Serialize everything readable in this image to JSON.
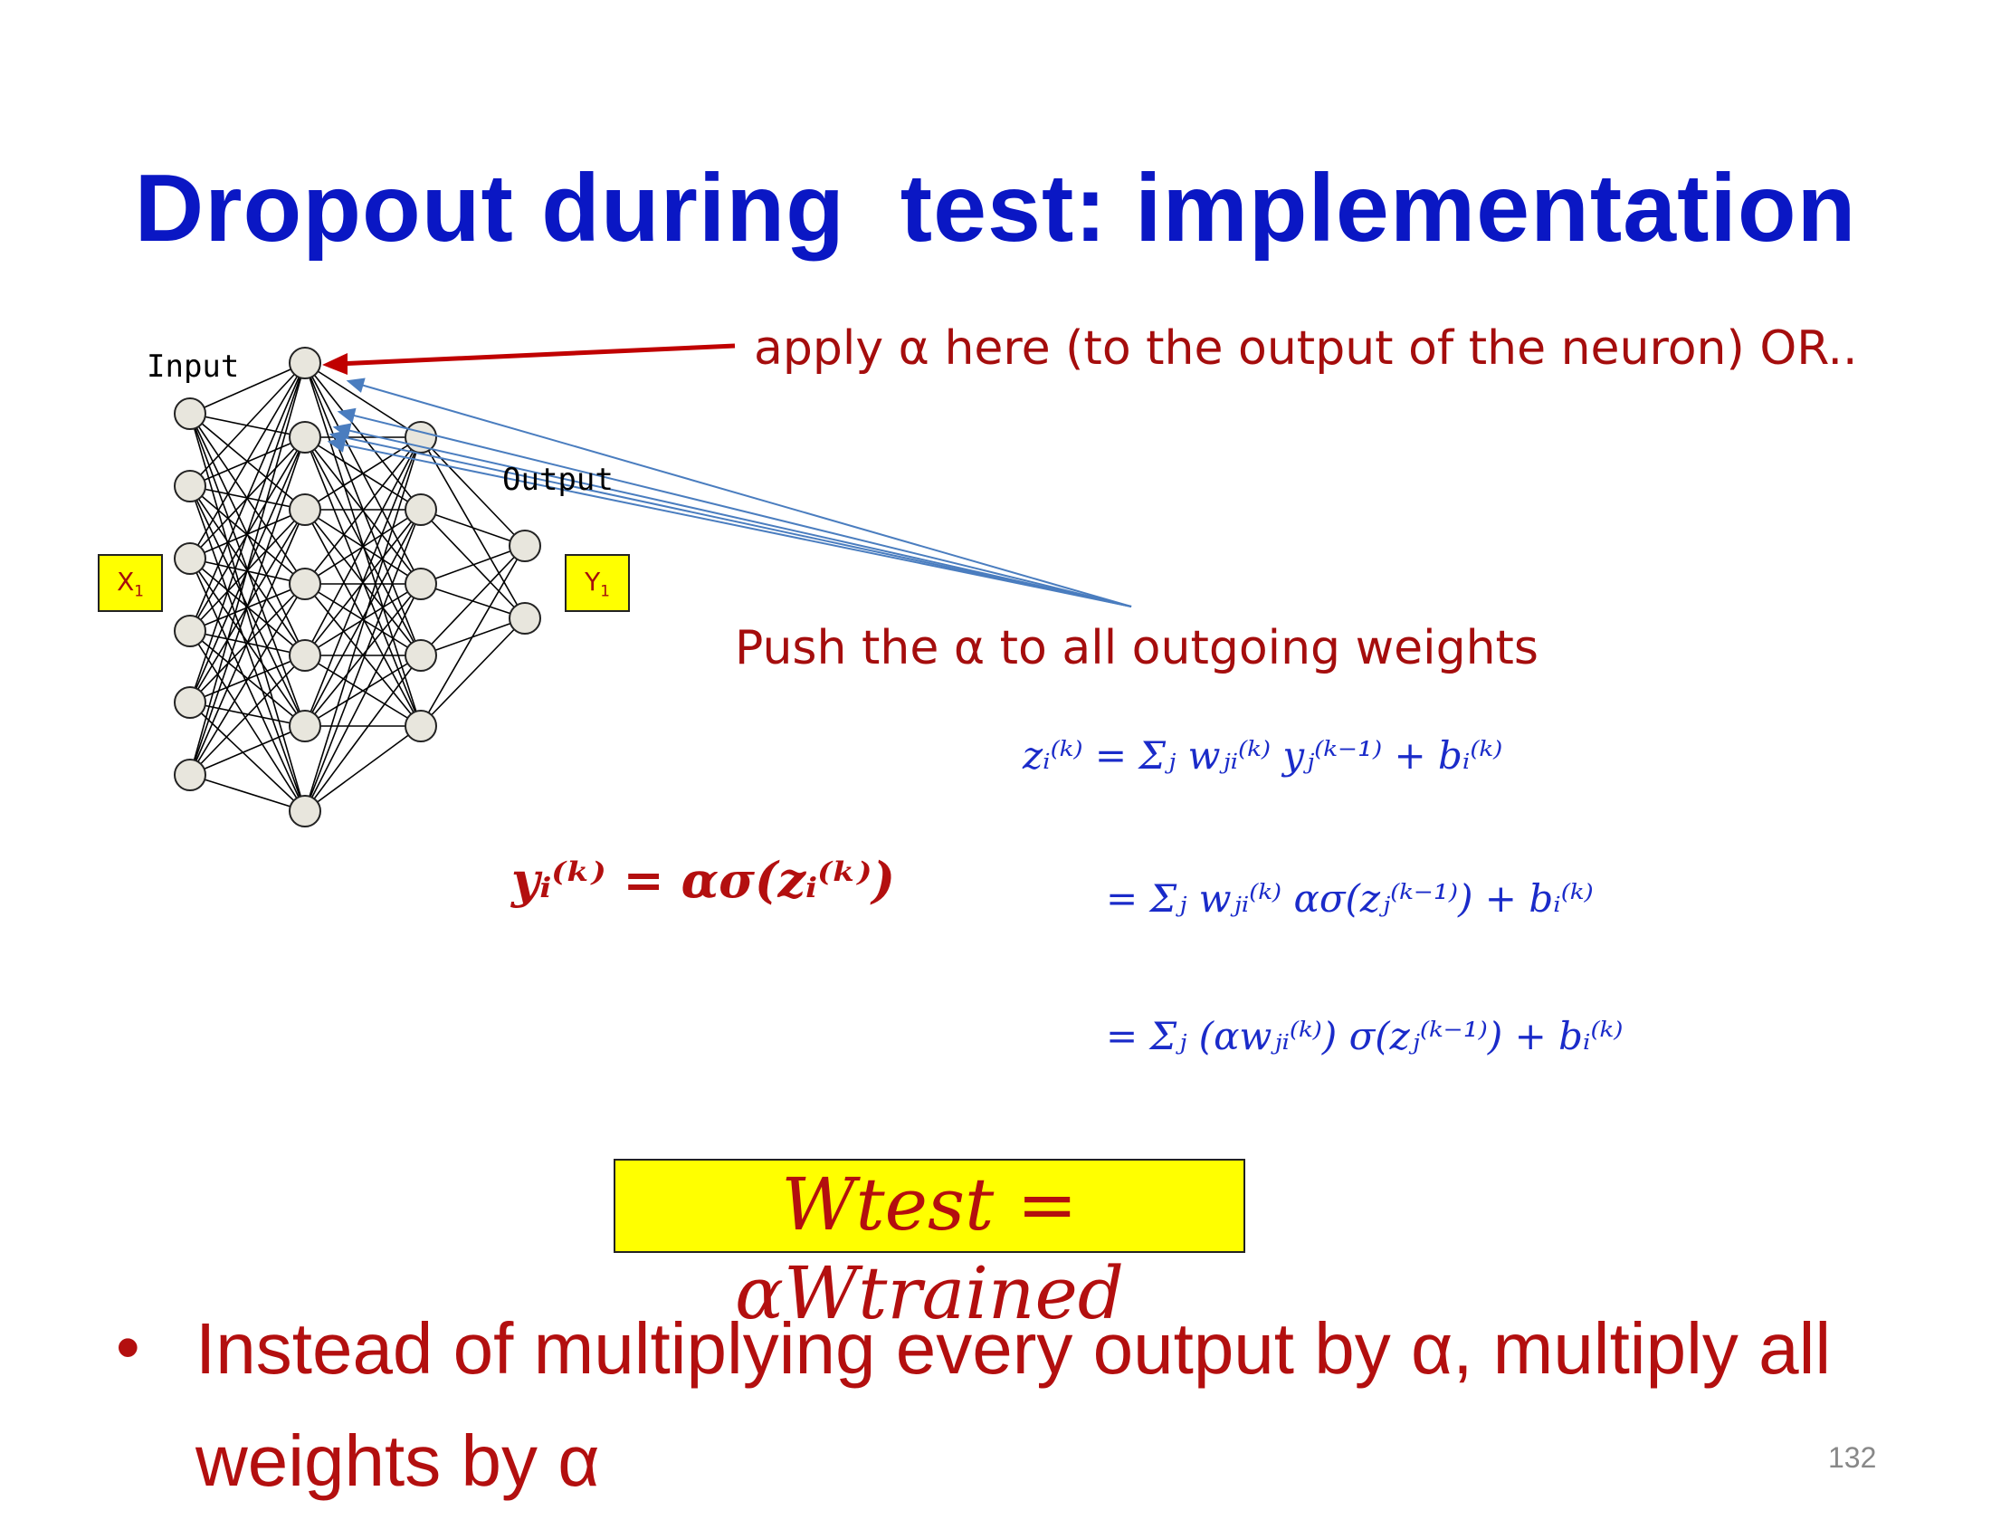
{
  "slide": {
    "title": "Dropout during  test: implementation",
    "page_number": "132"
  },
  "network": {
    "input_label": "Input",
    "output_label": "Output",
    "x_box": "X",
    "x_sub": "1",
    "y_box": "Y",
    "y_sub": "1"
  },
  "annotations": {
    "apply_note": "apply α here (to the output of the neuron) OR..",
    "push_note": "Push the α to all outgoing weights"
  },
  "equations": {
    "y_eq": "yᵢ⁽ᵏ⁾ = ασ(zᵢ⁽ᵏ⁾)",
    "z_line1": "zᵢ⁽ᵏ⁾ = Σⱼ wⱼᵢ⁽ᵏ⁾ yⱼ⁽ᵏ⁻¹⁾ + bᵢ⁽ᵏ⁾",
    "z_line2": "= Σⱼ wⱼᵢ⁽ᵏ⁾ ασ(zⱼ⁽ᵏ⁻¹⁾) + bᵢ⁽ᵏ⁾",
    "z_line3": "= Σⱼ (αwⱼᵢ⁽ᵏ⁾) σ(zⱼ⁽ᵏ⁻¹⁾) + bᵢ⁽ᵏ⁾",
    "w_test": "Wtest = αWtrained"
  },
  "bullet": {
    "text": "Instead of multiplying every output by α, multiply all weights by α"
  },
  "colors": {
    "title": "#0a17c4",
    "note": "#a50d0d",
    "equation": "#1a2bc9",
    "highlight": "#ffff00",
    "red_arrow": "#c00000",
    "blue_arrow": "#4a7dbf"
  }
}
